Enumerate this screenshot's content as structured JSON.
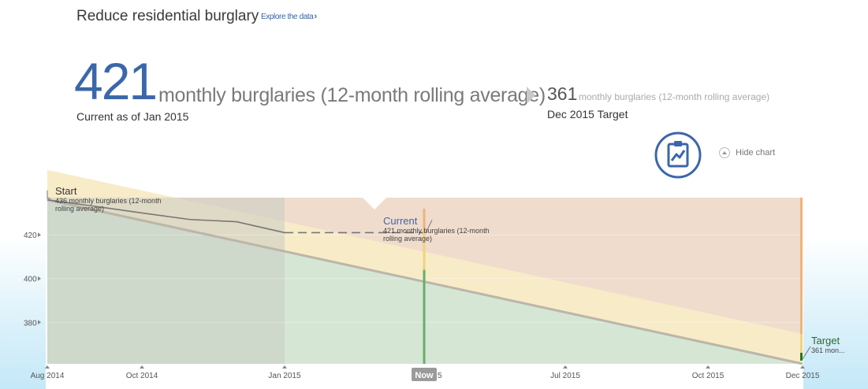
{
  "header": {
    "title": "Reduce residential burglary",
    "explore_label": "Explore the data",
    "explore_chevron": "›"
  },
  "current": {
    "value": "421",
    "unit": "monthly burglaries (12-month rolling average)",
    "as_of": "Current as of Jan 2015"
  },
  "target": {
    "value": "361",
    "unit": "monthly burglaries (12-month rolling average)",
    "date": "Dec 2015 Target"
  },
  "controls": {
    "clipboard_icon": "clipboard-chart-icon",
    "hide_chart_label": "Hide chart"
  },
  "colors": {
    "accent": "#3b67aa",
    "red_zone": "#f0dccd",
    "yellow_zone": "#f8ebc8",
    "green_zone": "#d5e6d4",
    "past_shade": "#c8ccc2",
    "now_bar": "#6aad6a"
  },
  "chart_data": {
    "type": "line",
    "x_min": "2014-08-01",
    "x_max": "2015-12-01",
    "ylim": [
      361,
      437
    ],
    "y_ticks": [
      380,
      400,
      420
    ],
    "x_ticks": [
      {
        "date": "2014-08-01",
        "label": "Aug 2014"
      },
      {
        "date": "2014-10-01",
        "label": "Oct 2014"
      },
      {
        "date": "2015-01-01",
        "label": "Jan 2015"
      },
      {
        "date": "2015-04-01",
        "label": "Now"
      },
      {
        "date": "2015-07-01",
        "label": "Jul 2015"
      },
      {
        "date": "2015-10-01",
        "label": "Oct 2015"
      },
      {
        "date": "2015-12-01",
        "label": "Dec 2015"
      }
    ],
    "now_date": "2015-04-01",
    "now_value": 404,
    "now_label": "Now",
    "now_label_suffix": "5",
    "actual": {
      "x": [
        "2014-08-01",
        "2014-09-01",
        "2014-10-01",
        "2014-11-01",
        "2014-12-01",
        "2015-01-01"
      ],
      "y": [
        436,
        433,
        430,
        427,
        426,
        421
      ]
    },
    "projection": {
      "x": [
        "2015-01-01",
        "2015-04-01"
      ],
      "y": [
        421,
        421
      ]
    },
    "target_line": {
      "x": [
        "2014-08-01",
        "2015-12-01"
      ],
      "y": [
        436,
        361
      ]
    },
    "annotations": {
      "start_title": "Start",
      "start_text": "436 monthly burglaries (12-month rolling average)",
      "start_line1": "436 monthly burglaries (12-month",
      "start_line2": "rolling average)",
      "current_title": "Current",
      "current_line1": "421 monthly burglaries (12-month",
      "current_line2": "rolling average)",
      "target_title": "Target",
      "target_short": "361 mon..."
    }
  }
}
